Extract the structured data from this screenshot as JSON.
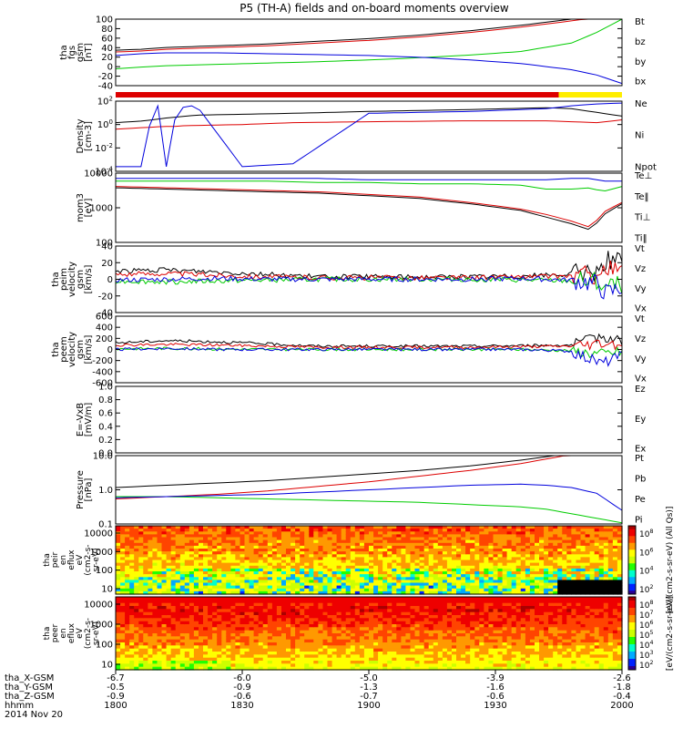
{
  "title": "P5 (TH-A) fields and on-board moments overview",
  "colors": {
    "black": "#000000",
    "red": "#dd0000",
    "green": "#00cc00",
    "blue": "#0000dd"
  },
  "time_axis": {
    "hhmm_ticks": [
      "1800",
      "1830",
      "1900",
      "1930",
      "2000"
    ],
    "date": "2014 Nov 20",
    "rows": [
      {
        "label": "tha_X-GSM",
        "values": [
          "-6.7",
          "-6.0",
          "-5.0",
          "-3.9",
          "-2.6"
        ]
      },
      {
        "label": "tha_Y-GSM",
        "values": [
          "-0.5",
          "-0.9",
          "-1.3",
          "-1.6",
          "-1.8"
        ]
      },
      {
        "label": "tha_Z-GSM",
        "values": [
          "-0.9",
          "-0.6",
          "-0.7",
          "-0.6",
          "-0.4"
        ]
      },
      {
        "label": "hhmm",
        "values": [
          "1800",
          "1830",
          "1900",
          "1930",
          "2000"
        ]
      }
    ]
  },
  "bar": {
    "segments": [
      {
        "from": 0,
        "to": 0.875,
        "color": "#dd0000"
      },
      {
        "from": 0.875,
        "to": 1,
        "color": "#ffee00"
      }
    ]
  },
  "chart_data": [
    {
      "type": "line",
      "id": "fgs",
      "ylabel": [
        "tha",
        "fgs",
        "gsm",
        "[nT]"
      ],
      "yticks": [
        "100",
        "80",
        "60",
        "40",
        "20",
        "0",
        "-20",
        "-40"
      ],
      "ylim": [
        -50,
        100
      ],
      "x": [
        0,
        0.05,
        0.1,
        0.2,
        0.3,
        0.4,
        0.5,
        0.6,
        0.7,
        0.8,
        0.9,
        0.95,
        1.0
      ],
      "series": [
        {
          "name": "Bt",
          "color": "#000000",
          "values": [
            30,
            32,
            36,
            40,
            44,
            50,
            56,
            64,
            74,
            86,
            100,
            108,
            118
          ]
        },
        {
          "name": "bz",
          "color": "#dd0000",
          "values": [
            26,
            28,
            32,
            36,
            40,
            46,
            52,
            60,
            70,
            82,
            96,
            104,
            114
          ]
        },
        {
          "name": "by",
          "color": "#00cc00",
          "values": [
            -12,
            -8,
            -5,
            -2,
            1,
            4,
            8,
            13,
            19,
            27,
            46,
            70,
            100
          ]
        },
        {
          "name": "bx",
          "color": "#0000dd",
          "values": [
            18,
            22,
            24,
            24,
            22,
            20,
            18,
            14,
            8,
            0,
            -14,
            -26,
            -45
          ]
        }
      ]
    },
    {
      "type": "line",
      "id": "density",
      "yscale": "log",
      "ylabel": [
        "Density",
        "[cm-3]"
      ],
      "yticks": [
        "10^2",
        "10^0",
        "10^-2",
        "10^-4"
      ],
      "ylim": [
        -5,
        2.5
      ],
      "x": [
        0,
        0.03,
        0.06,
        0.07,
        0.09,
        0.1,
        0.12,
        0.14,
        0.16,
        0.25,
        0.35,
        0.5,
        0.7,
        0.85,
        0.9,
        0.95,
        1.0
      ],
      "series": [
        {
          "name": "Ne",
          "color": "#dd0000",
          "values": [
            -0.5,
            -0.4,
            -0.3,
            -0.3,
            -0.2,
            -0.2,
            -0.2,
            -0.1,
            -0.1,
            0.0,
            0.2,
            0.3,
            0.4,
            0.4,
            0.3,
            0.2,
            0.5
          ]
        },
        {
          "name": "Ni",
          "color": "#000000",
          "values": [
            0.2,
            0.3,
            0.4,
            0.5,
            0.6,
            0.7,
            0.8,
            0.9,
            1.0,
            1.1,
            1.2,
            1.4,
            1.6,
            1.8,
            1.7,
            1.3,
            0.9
          ]
        },
        {
          "name": "Npot",
          "color": "#0000dd",
          "values": [
            -4.5,
            -4.5,
            -4.5,
            2,
            2,
            -4.5,
            1.5,
            2,
            2,
            -4.5,
            -4.2,
            1.2,
            1.4,
            1.7,
            2.0,
            2.2,
            2.3
          ]
        }
      ]
    },
    {
      "type": "line",
      "id": "mom",
      "yscale": "log",
      "ylabel": [
        "mom3",
        "[eV]"
      ],
      "yticks": [
        "10000",
        "1000",
        "100"
      ],
      "ylim": [
        1.5,
        4.1
      ],
      "x": [
        0,
        0.1,
        0.2,
        0.3,
        0.4,
        0.5,
        0.6,
        0.7,
        0.8,
        0.85,
        0.9,
        0.94,
        0.96,
        1.0
      ],
      "series": [
        {
          "name": "Te⊥",
          "color": "#dd0000",
          "values": [
            3.6,
            3.55,
            3.5,
            3.45,
            3.4,
            3.3,
            3.2,
            3.0,
            2.75,
            2.55,
            2.3,
            2.05,
            2.6,
            3.0
          ]
        },
        {
          "name": "Te‖",
          "color": "#000000",
          "values": [
            3.55,
            3.5,
            3.45,
            3.4,
            3.35,
            3.25,
            3.15,
            2.95,
            2.7,
            2.45,
            2.2,
            1.95,
            2.5,
            2.95
          ]
        },
        {
          "name": "Ti⊥",
          "color": "#0000dd",
          "values": [
            3.9,
            3.9,
            3.9,
            3.9,
            3.9,
            3.85,
            3.85,
            3.85,
            3.85,
            3.85,
            3.9,
            3.9,
            3.8,
            3.8
          ]
        },
        {
          "name": "Ti‖",
          "color": "#00cc00",
          "values": [
            3.8,
            3.8,
            3.8,
            3.8,
            3.75,
            3.75,
            3.7,
            3.7,
            3.65,
            3.5,
            3.5,
            3.55,
            3.4,
            3.6
          ]
        }
      ]
    },
    {
      "type": "line",
      "id": "peim",
      "ylabel": [
        "tha",
        "peim",
        "velocity",
        "gsm",
        "[km/s]"
      ],
      "yticks": [
        "40",
        "20",
        "0",
        "-20",
        "-40"
      ],
      "ylim": [
        -40,
        40
      ],
      "x": [
        0,
        0.1,
        0.2,
        0.3,
        0.4,
        0.5,
        0.6,
        0.7,
        0.8,
        0.9,
        0.95,
        0.97,
        1.0
      ],
      "series": [
        {
          "name": "Vt",
          "color": "#000000",
          "values": [
            10,
            11,
            9,
            6,
            3,
            3,
            3,
            3,
            4,
            6,
            10,
            25,
            20
          ]
        },
        {
          "name": "Vz",
          "color": "#dd0000",
          "values": [
            6,
            7,
            5,
            3,
            2,
            2,
            2,
            2,
            3,
            4,
            6,
            12,
            10
          ]
        },
        {
          "name": "Vy",
          "color": "#00cc00",
          "values": [
            -2,
            -3,
            -2,
            -1,
            0,
            0,
            0,
            0,
            -1,
            -2,
            -4,
            -10,
            -6
          ]
        },
        {
          "name": "Vx",
          "color": "#0000dd",
          "values": [
            -1,
            0,
            1,
            0,
            0,
            0,
            0,
            0,
            1,
            -1,
            -6,
            -18,
            -10
          ]
        }
      ]
    },
    {
      "type": "line",
      "id": "peem",
      "ylabel": [
        "tha",
        "peem",
        "velocity",
        "gsm",
        "[km/s]"
      ],
      "yticks": [
        "600",
        "400",
        "200",
        "0",
        "-200",
        "-400",
        "-600"
      ],
      "ylim": [
        -600,
        600
      ],
      "x": [
        0,
        0.1,
        0.2,
        0.3,
        0.4,
        0.5,
        0.6,
        0.7,
        0.8,
        0.9,
        0.93,
        0.96,
        1.0
      ],
      "series": [
        {
          "name": "Vt",
          "color": "#000000",
          "values": [
            120,
            160,
            140,
            100,
            60,
            60,
            60,
            60,
            70,
            80,
            150,
            250,
            150
          ]
        },
        {
          "name": "Vz",
          "color": "#dd0000",
          "values": [
            80,
            90,
            80,
            60,
            40,
            40,
            40,
            40,
            50,
            60,
            90,
            120,
            90
          ]
        },
        {
          "name": "Vy",
          "color": "#00cc00",
          "values": [
            10,
            20,
            10,
            0,
            0,
            0,
            0,
            0,
            0,
            -20,
            -60,
            -80,
            -40
          ]
        },
        {
          "name": "Vx",
          "color": "#0000dd",
          "values": [
            0,
            20,
            0,
            0,
            0,
            0,
            0,
            0,
            0,
            -30,
            -150,
            -250,
            -120
          ]
        }
      ]
    },
    {
      "type": "line",
      "id": "exb",
      "ylabel": [
        "E=-VxB",
        "[mV/m]"
      ],
      "yticks": [
        "1.0",
        "0.8",
        "0.6",
        "0.4",
        "0.2",
        "0.0"
      ],
      "ylim": [
        0,
        1
      ],
      "x": [],
      "series": [
        {
          "name": "Ez",
          "color": "#dd0000",
          "values": []
        },
        {
          "name": "Ey",
          "color": "#00cc00",
          "values": []
        },
        {
          "name": "Ex",
          "color": "#0000dd",
          "values": []
        }
      ]
    },
    {
      "type": "line",
      "id": "pressure",
      "yscale": "log",
      "ylabel": [
        "Pressure",
        "[nPa]"
      ],
      "yticks": [
        "10.0",
        "1.0",
        "0.1"
      ],
      "ylim": [
        -1.3,
        1.7
      ],
      "x": [
        0,
        0.1,
        0.2,
        0.3,
        0.4,
        0.5,
        0.6,
        0.7,
        0.8,
        0.85,
        0.9,
        0.95,
        1.0
      ],
      "series": [
        {
          "name": "Pt",
          "color": "#000000",
          "values": [
            0.3,
            0.4,
            0.5,
            0.6,
            0.75,
            0.9,
            1.05,
            1.25,
            1.5,
            1.65,
            1.8,
            1.95,
            2.1
          ]
        },
        {
          "name": "Pb",
          "color": "#dd0000",
          "values": [
            -0.2,
            -0.1,
            0.0,
            0.15,
            0.35,
            0.55,
            0.8,
            1.05,
            1.35,
            1.55,
            1.75,
            1.95,
            2.1
          ]
        },
        {
          "name": "Pe",
          "color": "#00cc00",
          "values": [
            -0.1,
            -0.1,
            -0.15,
            -0.2,
            -0.25,
            -0.3,
            -0.35,
            -0.45,
            -0.55,
            -0.65,
            -0.85,
            -1.05,
            -1.25
          ]
        },
        {
          "name": "Pi",
          "color": "#0000dd",
          "values": [
            -0.15,
            -0.1,
            -0.05,
            0.0,
            0.1,
            0.2,
            0.3,
            0.4,
            0.45,
            0.4,
            0.3,
            0.05,
            -0.7
          ]
        }
      ]
    },
    {
      "type": "heatmap",
      "id": "peir",
      "ylabel": [
        "tha",
        "peir",
        "en",
        "eflux",
        "eV",
        "(cm2-s-",
        "sr-eV)"
      ],
      "yticks": [
        "10000",
        "1000",
        "100",
        "10"
      ],
      "colorbar_ticks": [
        "10^8",
        "10^6",
        "10^4",
        "10^2"
      ],
      "colorbar_label": "[eV/(cm2-s-sr-eV) (All Qs)]"
    },
    {
      "type": "heatmap",
      "id": "peer",
      "ylabel": [
        "tha",
        "peer",
        "en",
        "eflux",
        "eV",
        "(cm2-s-",
        "sr-eV)"
      ],
      "yticks": [
        "10000",
        "1000",
        "100",
        "10"
      ],
      "colorbar_ticks": [
        "10^8",
        "10^7",
        "10^6",
        "10^5",
        "10^4",
        "10^3",
        "10^2"
      ],
      "colorbar_label": "[eV/(cm2-s-sr-eV)]"
    }
  ]
}
